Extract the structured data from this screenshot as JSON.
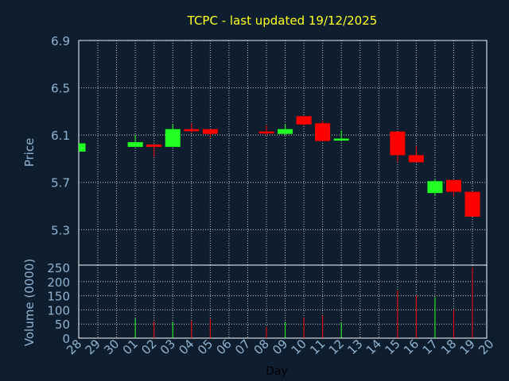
{
  "chart_data": {
    "type": "candlestick",
    "title": "TCPC - last updated 19/12/2025",
    "xlabel": "Day",
    "ylabel": "Price",
    "volume_label": "Volume (0000)",
    "x_ticks": [
      "28",
      "29",
      "30",
      "01",
      "02",
      "03",
      "04",
      "05",
      "06",
      "07",
      "08",
      "09",
      "10",
      "11",
      "12",
      "13",
      "14",
      "15",
      "16",
      "17",
      "18",
      "19",
      "20"
    ],
    "price_ticks": [
      "6.9",
      "6.5",
      "6.1",
      "5.7",
      "5.3"
    ],
    "volume_ticks": [
      "250",
      "200",
      "150",
      "100",
      "50",
      "0"
    ],
    "price_range": [
      5.0,
      6.9
    ],
    "volume_range": [
      0,
      250
    ],
    "grid": true,
    "colors": {
      "background": "#0f1e2f",
      "up": "#22ff22",
      "down": "#ff0000",
      "grid": "#c8c8c8",
      "title": "#ffff22",
      "axis_text": "#8fb3d2"
    },
    "candles": [
      {
        "day": "28",
        "open": 5.96,
        "close": 6.03,
        "high": 6.03,
        "low": 5.96,
        "volume": 0
      },
      {
        "day": "01",
        "open": 6.0,
        "close": 6.04,
        "high": 6.1,
        "low": 6.0,
        "volume": 70
      },
      {
        "day": "02",
        "open": 6.02,
        "close": 6.0,
        "high": 6.02,
        "low": 5.92,
        "volume": 60
      },
      {
        "day": "03",
        "open": 6.0,
        "close": 6.15,
        "high": 6.19,
        "low": 6.0,
        "volume": 58
      },
      {
        "day": "04",
        "open": 6.15,
        "close": 6.14,
        "high": 6.2,
        "low": 6.12,
        "volume": 62
      },
      {
        "day": "05",
        "open": 6.15,
        "close": 6.11,
        "high": 6.15,
        "low": 6.08,
        "volume": 68
      },
      {
        "day": "08",
        "open": 6.13,
        "close": 6.12,
        "high": 6.18,
        "low": 6.1,
        "volume": 40
      },
      {
        "day": "09",
        "open": 6.11,
        "close": 6.15,
        "high": 6.19,
        "low": 6.1,
        "volume": 58
      },
      {
        "day": "10",
        "open": 6.26,
        "close": 6.19,
        "high": 6.26,
        "low": 6.18,
        "volume": 72
      },
      {
        "day": "11",
        "open": 6.2,
        "close": 6.05,
        "high": 6.22,
        "low": 6.05,
        "volume": 80
      },
      {
        "day": "12",
        "open": 6.06,
        "close": 6.07,
        "high": 6.14,
        "low": 6.06,
        "volume": 55
      },
      {
        "day": "15",
        "open": 6.13,
        "close": 5.93,
        "high": 6.13,
        "low": 5.87,
        "volume": 168
      },
      {
        "day": "16",
        "open": 5.93,
        "close": 5.87,
        "high": 6.01,
        "low": 5.87,
        "volume": 150
      },
      {
        "day": "17",
        "open": 5.61,
        "close": 5.71,
        "high": 5.73,
        "low": 5.59,
        "volume": 145
      },
      {
        "day": "18",
        "open": 5.72,
        "close": 5.62,
        "high": 5.72,
        "low": 5.58,
        "volume": 100
      },
      {
        "day": "19",
        "open": 5.62,
        "close": 5.41,
        "high": 5.62,
        "low": 5.41,
        "volume": 250
      }
    ]
  }
}
